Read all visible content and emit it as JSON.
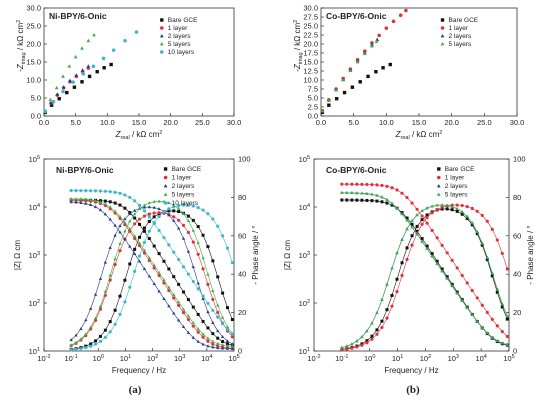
{
  "chart_data": [
    {
      "type": "scatter",
      "panel_title": "Ni-BPY/6-Onic",
      "xlabel_main": "Z",
      "xlabel_sub": "real",
      "xlabel_unit": " / kΩ cm",
      "ylabel_main": "-Z",
      "ylabel_sub": "imag",
      "ylabel_unit": " / kΩ cm",
      "xlim": [
        0,
        30
      ],
      "ylim": [
        0,
        30
      ],
      "xticks": [
        "0.0",
        "5.0",
        "10.0",
        "15.0",
        "20.0",
        "25.0",
        "30.0"
      ],
      "yticks": [
        "0.0",
        "5.0",
        "10.0",
        "15.0",
        "20.0",
        "25.0",
        "30.0"
      ],
      "series": [
        {
          "name": "Bare GCE",
          "marker": "square",
          "color": "#111111",
          "points": [
            [
              0.2,
              1.0
            ],
            [
              1.2,
              3.0
            ],
            [
              2.4,
              4.8
            ],
            [
              3.6,
              6.5
            ],
            [
              4.8,
              8.0
            ],
            [
              6.0,
              9.5
            ],
            [
              7.2,
              11.0
            ],
            [
              8.4,
              12.3
            ],
            [
              9.5,
              13.4
            ],
            [
              10.6,
              14.3
            ]
          ]
        },
        {
          "name": "1 layer",
          "marker": "circle",
          "color": "#e0303a",
          "points": [
            [
              0.2,
              1.2
            ],
            [
              1.1,
              3.5
            ],
            [
              2.1,
              5.8
            ],
            [
              3.1,
              7.8
            ],
            [
              4.1,
              9.5
            ],
            [
              5.1,
              11.0
            ],
            [
              6.1,
              12.3
            ],
            [
              7.0,
              13.3
            ]
          ]
        },
        {
          "name": "2 layers",
          "marker": "triangle",
          "color": "#2a3a8c",
          "points": [
            [
              0.2,
              1.2
            ],
            [
              1.1,
              3.6
            ],
            [
              2.1,
              6.0
            ],
            [
              3.1,
              8.0
            ],
            [
              4.1,
              9.8
            ],
            [
              5.1,
              11.3
            ],
            [
              6.1,
              12.7
            ],
            [
              7.0,
              13.8
            ]
          ]
        },
        {
          "name": "5 layers",
          "marker": "triangle",
          "color": "#3cb043",
          "points": [
            [
              0.2,
              1.4
            ],
            [
              1.0,
              4.5
            ],
            [
              2.0,
              7.8
            ],
            [
              3.0,
              11.0
            ],
            [
              4.0,
              13.8
            ],
            [
              5.0,
              16.4
            ],
            [
              6.0,
              18.8
            ],
            [
              7.0,
              20.9
            ],
            [
              7.9,
              22.5
            ]
          ]
        },
        {
          "name": "10 layers",
          "marker": "circle",
          "color": "#3bb8c8",
          "points": [
            [
              0.2,
              1.3
            ],
            [
              1.5,
              4.0
            ],
            [
              3.0,
              6.8
            ],
            [
              4.6,
              9.4
            ],
            [
              6.2,
              11.7
            ],
            [
              7.8,
              13.8
            ],
            [
              9.4,
              16.0
            ],
            [
              11.0,
              18.3
            ],
            [
              12.8,
              20.9
            ],
            [
              14.6,
              23.3
            ]
          ]
        }
      ]
    },
    {
      "type": "scatter",
      "panel_title": "Co-BPY/6-Onic",
      "xlabel_main": "Z",
      "xlabel_sub": "real",
      "xlabel_unit": " / kΩ cm",
      "ylabel_main": "-Z",
      "ylabel_sub": "imag",
      "ylabel_unit": " / kΩ cm",
      "xlim": [
        0,
        30
      ],
      "ylim": [
        0,
        30
      ],
      "xticks": [
        "0.0",
        "5.0",
        "10.0",
        "15.0",
        "20.0",
        "25.0",
        "30.0"
      ],
      "yticks": [
        "0.0",
        "2.5",
        "5.0",
        "7.5",
        "10.0",
        "12.5",
        "15.0",
        "17.5",
        "20.0",
        "22.5",
        "25.0",
        "27.5",
        "30.0"
      ],
      "series": [
        {
          "name": "Bare GCE",
          "marker": "square",
          "color": "#111111",
          "points": [
            [
              0.2,
              1.0
            ],
            [
              1.2,
              3.0
            ],
            [
              2.4,
              4.8
            ],
            [
              3.6,
              6.5
            ],
            [
              4.8,
              8.0
            ],
            [
              6.0,
              9.5
            ],
            [
              7.2,
              11.0
            ],
            [
              8.4,
              12.3
            ],
            [
              9.5,
              13.4
            ],
            [
              10.6,
              14.3
            ]
          ]
        },
        {
          "name": "1 layer",
          "marker": "circle",
          "color": "#e0303a",
          "points": [
            [
              0.2,
              1.5
            ],
            [
              1.2,
              4.5
            ],
            [
              2.3,
              7.5
            ],
            [
              3.4,
              10.4
            ],
            [
              4.5,
              13.0
            ],
            [
              5.6,
              15.6
            ],
            [
              6.7,
              18.0
            ],
            [
              7.8,
              20.3
            ],
            [
              8.9,
              22.4
            ],
            [
              10.0,
              24.4
            ],
            [
              11.1,
              26.3
            ],
            [
              12.2,
              28.0
            ],
            [
              13.0,
              29.3
            ]
          ]
        },
        {
          "name": "2 layers",
          "marker": "triangle",
          "color": "#2a3a8c",
          "points": [
            [
              0.2,
              1.4
            ],
            [
              1.2,
              4.3
            ],
            [
              2.3,
              7.3
            ],
            [
              3.4,
              10.1
            ],
            [
              4.5,
              12.8
            ],
            [
              5.6,
              15.3
            ],
            [
              6.7,
              17.6
            ],
            [
              7.8,
              19.8
            ],
            [
              8.6,
              21.2
            ]
          ]
        },
        {
          "name": "5 layers",
          "marker": "triangle",
          "color": "#3cb043",
          "points": [
            [
              0.2,
              1.4
            ],
            [
              1.2,
              4.3
            ],
            [
              2.3,
              7.2
            ],
            [
              3.4,
              10.0
            ],
            [
              4.5,
              12.6
            ],
            [
              5.6,
              15.0
            ],
            [
              6.7,
              17.3
            ],
            [
              7.8,
              19.4
            ],
            [
              8.5,
              20.7
            ]
          ]
        }
      ]
    },
    {
      "type": "scatter",
      "panel_title": "Ni-BPY/6-Onic",
      "xlabel": "Frequency / Hz",
      "ylabel_left": "|Z| Ω cm",
      "ylabel_right": "- Phase angle / °",
      "xscale": "log",
      "xlim": [
        0.01,
        100000
      ],
      "yscale_left": "log",
      "ylim_left": [
        10,
        100000
      ],
      "ylim_right": [
        0,
        100
      ],
      "xticks": [
        [
          "10",
          "-2"
        ],
        [
          "10",
          "-1"
        ],
        [
          "10",
          "0"
        ],
        [
          "10",
          "1"
        ],
        [
          "10",
          "2"
        ],
        [
          "10",
          "3"
        ],
        [
          "10",
          "4"
        ],
        [
          "10",
          "5"
        ]
      ],
      "yticks_left": [
        [
          "10",
          "1"
        ],
        [
          "10",
          "2"
        ],
        [
          "10",
          "3"
        ],
        [
          "10",
          "4"
        ],
        [
          "10",
          "5"
        ]
      ],
      "yticks_right": [
        "0",
        "20",
        "40",
        "60",
        "80",
        "100"
      ],
      "series": [
        {
          "name": "Bare GCE",
          "marker": "square",
          "color": "#111111",
          "rct": 14000,
          "rs": 12,
          "n": 0.9,
          "pmax": 73,
          "fc": 400
        },
        {
          "name": "1 layer",
          "marker": "circle",
          "color": "#e0303a",
          "rct": 14000,
          "rs": 11,
          "n": 0.88,
          "pmax": 72,
          "fc": 120
        },
        {
          "name": "2 layers",
          "marker": "triangle",
          "color": "#2a3a8c",
          "rct": 13000,
          "rs": 11,
          "n": 0.88,
          "pmax": 75,
          "fc": 60
        },
        {
          "name": "5 layers",
          "marker": "triangle",
          "color": "#3cb043",
          "rct": 15000,
          "rs": 12,
          "n": 0.87,
          "pmax": 78,
          "fc": 120
        },
        {
          "name": "10 layers",
          "marker": "circle",
          "color": "#3bb8c8",
          "rct": 22000,
          "rs": 12,
          "n": 0.86,
          "pmax": 76,
          "fc": 600
        }
      ]
    },
    {
      "type": "scatter",
      "panel_title": "Co-BPY/6-Onic",
      "xlabel": "Frequency / Hz",
      "ylabel_left": "|Z| Ω cm",
      "ylabel_right": "- Phase angle / °",
      "xscale": "log",
      "xlim": [
        0.01,
        100000
      ],
      "yscale_left": "log",
      "ylim_left": [
        10,
        100000
      ],
      "ylim_right": [
        0,
        100
      ],
      "xticks": [
        [
          "10",
          "-2"
        ],
        [
          "10",
          "-1"
        ],
        [
          "10",
          "0"
        ],
        [
          "10",
          "1"
        ],
        [
          "10",
          "2"
        ],
        [
          "10",
          "3"
        ],
        [
          "10",
          "4"
        ],
        [
          "10",
          "5"
        ]
      ],
      "yticks_left": [
        [
          "10",
          "1"
        ],
        [
          "10",
          "2"
        ],
        [
          "10",
          "3"
        ],
        [
          "10",
          "4"
        ],
        [
          "10",
          "5"
        ]
      ],
      "yticks_right": [
        "0",
        "20",
        "40",
        "60",
        "80",
        "100"
      ],
      "series": [
        {
          "name": "Bare GCE",
          "marker": "square",
          "color": "#111111",
          "rct": 14000,
          "rs": 12,
          "n": 0.9,
          "pmax": 74,
          "fc": 400
        },
        {
          "name": "1 layer",
          "marker": "circle",
          "color": "#e0303a",
          "rct": 30000,
          "rs": 12,
          "n": 0.88,
          "pmax": 76,
          "fc": 500
        },
        {
          "name": "2 layers",
          "marker": "triangle",
          "color": "#2a3a8c",
          "rct": 20000,
          "rs": 12,
          "n": 0.87,
          "pmax": 76,
          "fc": 200
        },
        {
          "name": "5 layers",
          "marker": "triangle",
          "color": "#3cb043",
          "rct": 20000,
          "rs": 12,
          "n": 0.87,
          "pmax": 76,
          "fc": 200
        }
      ]
    }
  ],
  "captions": {
    "a": "(a)",
    "b": "(b)"
  }
}
